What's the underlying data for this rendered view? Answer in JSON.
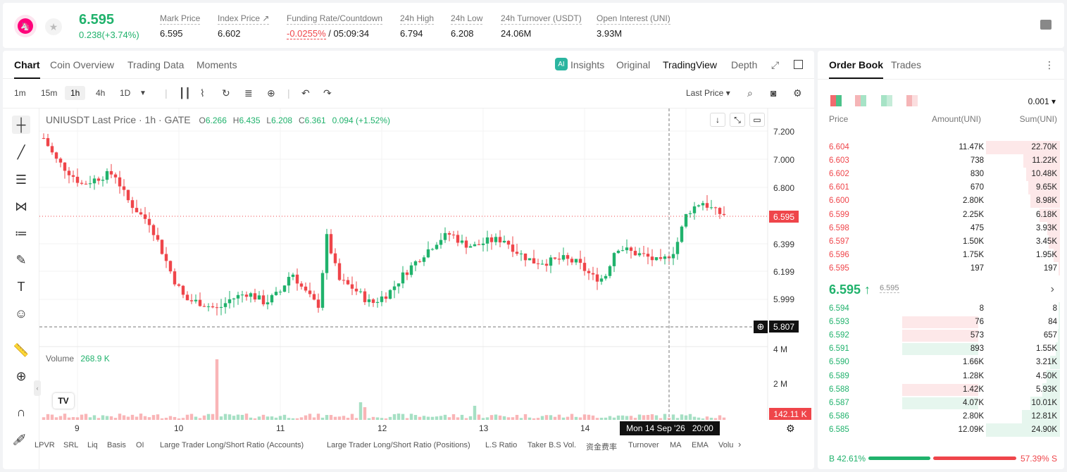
{
  "header": {
    "last_price": "6.595",
    "change": "0.238(+3.74%)",
    "stats": [
      {
        "label": "Mark Price",
        "value": "6.595"
      },
      {
        "label": "Index Price ↗",
        "value": "6.602"
      },
      {
        "label": "Funding Rate/Countdown",
        "value_a": "-0.0255%",
        "value_b": " / 05:09:34"
      },
      {
        "label": "24h High",
        "value": "6.794"
      },
      {
        "label": "24h Low",
        "value": "6.208"
      },
      {
        "label": "24h Turnover (USDT)",
        "value": "24.06M"
      },
      {
        "label": "Open Interest (UNI)",
        "value": "3.93M"
      }
    ]
  },
  "tabs": [
    "Chart",
    "Coin Overview",
    "Trading Data",
    "Moments"
  ],
  "view_tabs": [
    "Insights",
    "Original",
    "TradingView",
    "Depth"
  ],
  "timeframes": [
    "1m",
    "15m",
    "1h",
    "4h",
    "1D"
  ],
  "price_source": "Last Price ▾",
  "legend": {
    "title": "UNIUSDT Last Price · 1h · GATE",
    "o": "O",
    "o_v": "6.266",
    "h": "H",
    "h_v": "6.435",
    "l": "L",
    "l_v": "6.208",
    "c": "C",
    "c_v": "6.361",
    "chg": "0.094 (+1.52%)"
  },
  "volume_legend": {
    "label": "Volume",
    "value": "268.9 K"
  },
  "y_axis": [
    "7.200",
    "7.000",
    "6.800",
    "6.399",
    "6.199",
    "5.999"
  ],
  "vol_axis": [
    "4 M",
    "2 M"
  ],
  "last_price_tag": "6.595",
  "crosshair_price": "5.807",
  "volume_tag": "142.11 K",
  "x_axis": [
    "9",
    "10",
    "11",
    "12",
    "13",
    "14"
  ],
  "crosshair_time": "Mon 14 Sep '26   20:00",
  "bottom_indicators": [
    "LPVR",
    "SRL",
    "Liq",
    "Basis",
    "OI",
    "Large Trader Long/Short Ratio (Accounts)",
    "Large Trader Long/Short Ratio (Positions)",
    "L.S Ratio",
    "Taker B.S Vol.",
    "资金费率",
    "Turnover",
    "MA",
    "EMA",
    "Volu"
  ],
  "orderbook": {
    "tabs": [
      "Order Book",
      "Trades"
    ],
    "precision": "0.001 ▾",
    "cols": [
      "Price",
      "Amount(UNI)",
      "Sum(UNI)"
    ],
    "asks": [
      {
        "p": "6.604",
        "a": "11.47K",
        "s": "22.70K",
        "d": 1.0
      },
      {
        "p": "6.603",
        "a": "738",
        "s": "11.22K",
        "d": 0.494
      },
      {
        "p": "6.602",
        "a": "830",
        "s": "10.48K",
        "d": 0.462
      },
      {
        "p": "6.601",
        "a": "670",
        "s": "9.65K",
        "d": 0.425
      },
      {
        "p": "6.600",
        "a": "2.80K",
        "s": "8.98K",
        "d": 0.396
      },
      {
        "p": "6.599",
        "a": "2.25K",
        "s": "6.18K",
        "d": 0.272
      },
      {
        "p": "6.598",
        "a": "475",
        "s": "3.93K",
        "d": 0.173
      },
      {
        "p": "6.597",
        "a": "1.50K",
        "s": "3.45K",
        "d": 0.152
      },
      {
        "p": "6.596",
        "a": "1.75K",
        "s": "1.95K",
        "d": 0.086
      },
      {
        "p": "6.595",
        "a": "197",
        "s": "197",
        "d": 0.009
      }
    ],
    "mid": "6.595 ↑",
    "mark": "6.595",
    "bids": [
      {
        "p": "6.594",
        "a": "8",
        "s": "8",
        "d": 0.0003
      },
      {
        "p": "6.593",
        "a": "76",
        "s": "84",
        "d": 0.003
      },
      {
        "p": "6.592",
        "a": "573",
        "s": "657",
        "d": 0.026
      },
      {
        "p": "6.591",
        "a": "893",
        "s": "1.55K",
        "d": 0.062
      },
      {
        "p": "6.590",
        "a": "1.66K",
        "s": "3.21K",
        "d": 0.129
      },
      {
        "p": "6.589",
        "a": "1.28K",
        "s": "4.50K",
        "d": 0.181
      },
      {
        "p": "6.588",
        "a": "1.42K",
        "s": "5.93K",
        "d": 0.238
      },
      {
        "p": "6.587",
        "a": "4.07K",
        "s": "10.01K",
        "d": 0.402
      },
      {
        "p": "6.586",
        "a": "2.80K",
        "s": "12.81K",
        "d": 0.514
      },
      {
        "p": "6.585",
        "a": "12.09K",
        "s": "24.90K",
        "d": 1.0
      }
    ],
    "buy_label": "B",
    "buy_ratio": "42.61%",
    "sell_ratio": "57.39%",
    "sell_label": "S",
    "buy_share": 0.4261
  },
  "colors": {
    "up": "#20b26c",
    "down": "#ef454a"
  }
}
